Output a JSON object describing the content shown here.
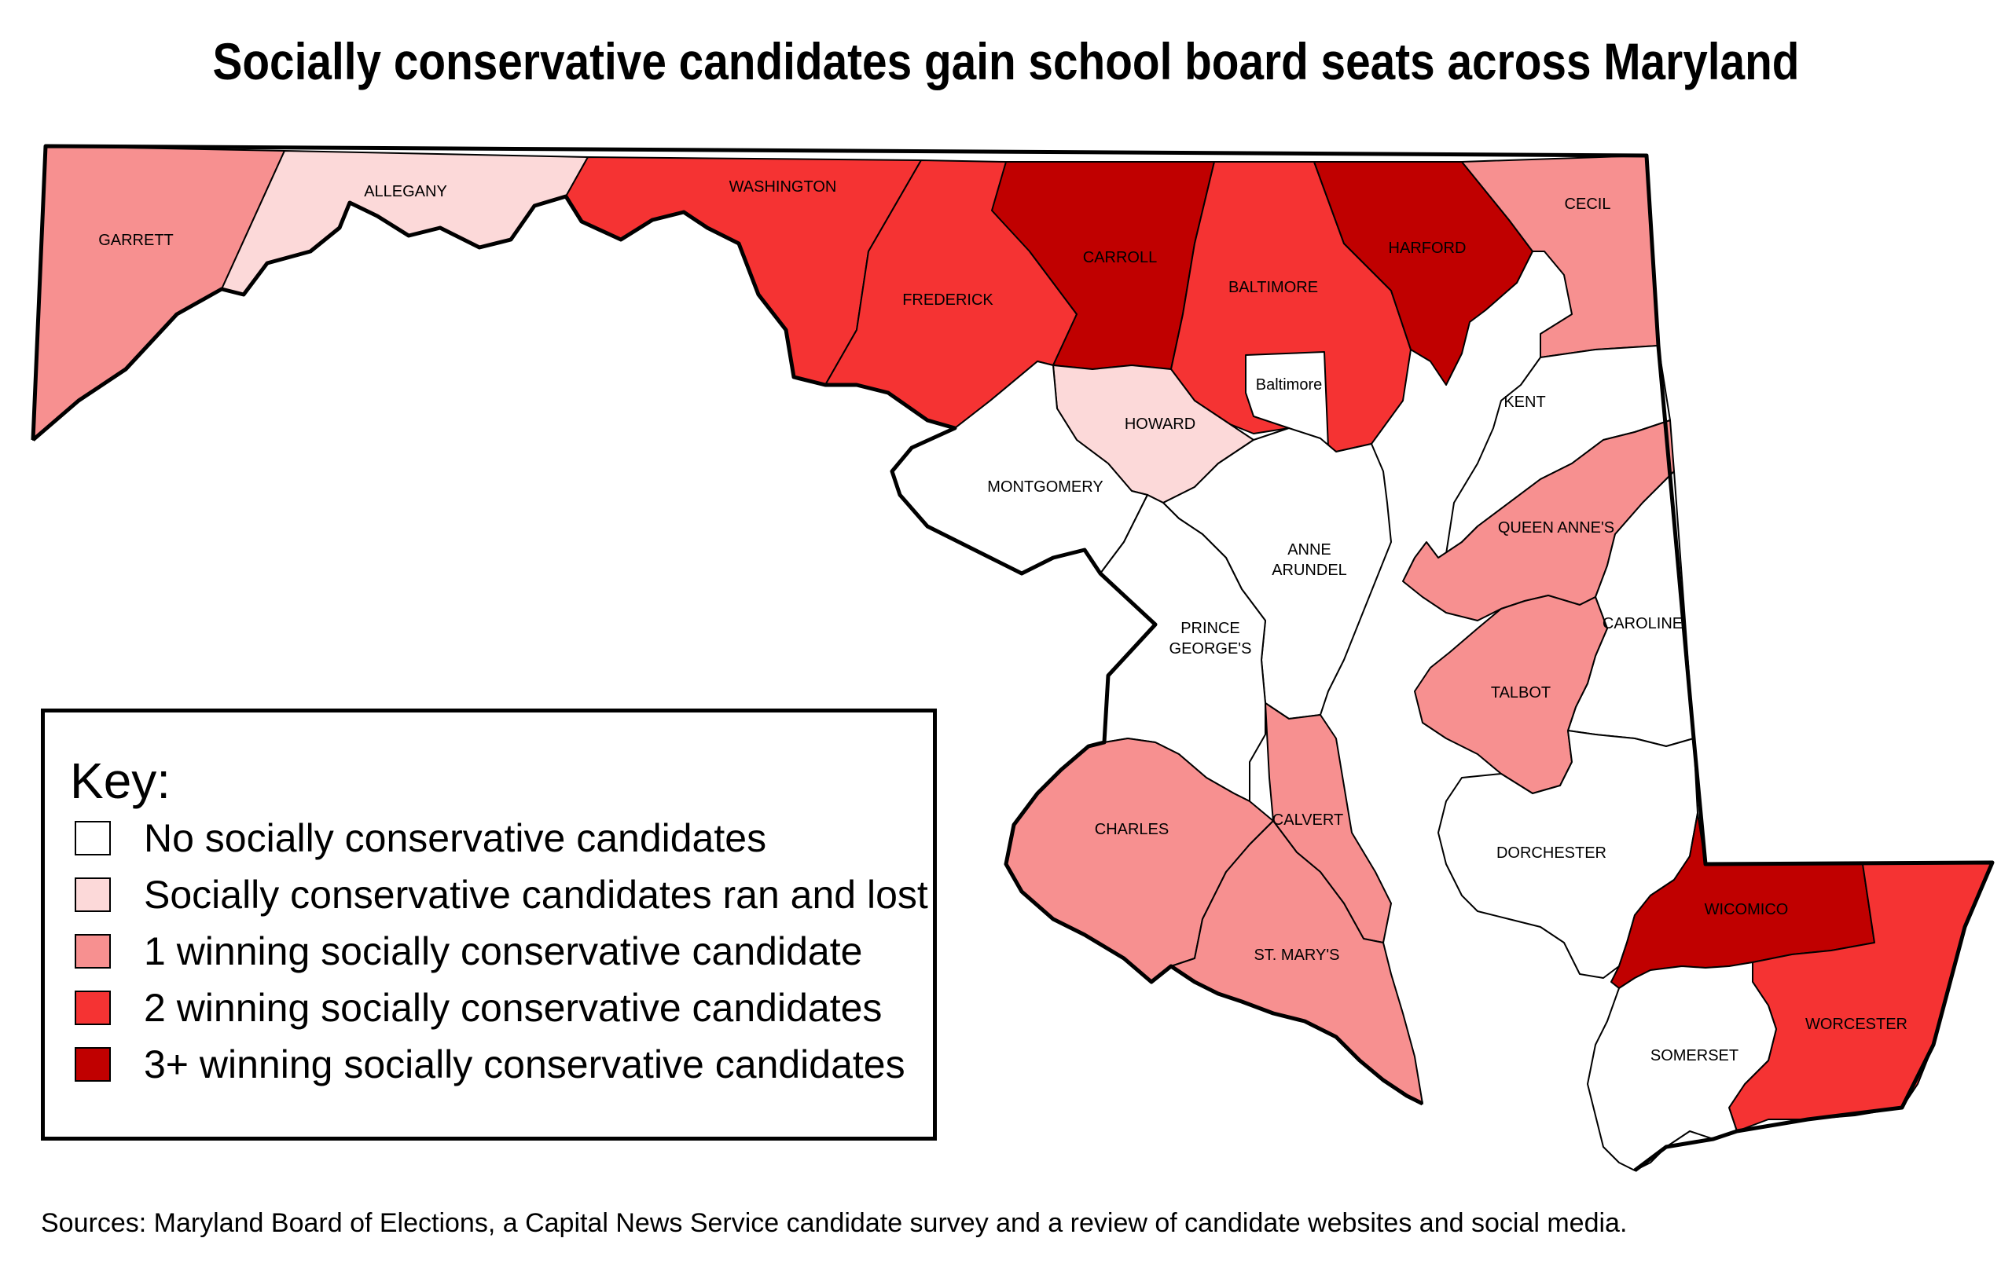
{
  "title": "Socially conservative candidates gain school board seats across Maryland",
  "colors": {
    "none": "#ffffff",
    "ran_lost": "#fcd9d9",
    "one": "#f79090",
    "two": "#f53333",
    "three_plus": "#c00000"
  },
  "counties": {
    "garrett": {
      "label": "GARRETT",
      "category": "one"
    },
    "allegany": {
      "label": "ALLEGANY",
      "category": "ran_lost"
    },
    "washington": {
      "label": "WASHINGTON",
      "category": "two"
    },
    "frederick": {
      "label": "FREDERICK",
      "category": "two"
    },
    "carroll": {
      "label": "CARROLL",
      "category": "three_plus"
    },
    "baltimore_county": {
      "label": "BALTIMORE",
      "category": "two"
    },
    "harford": {
      "label": "HARFORD",
      "category": "three_plus"
    },
    "cecil": {
      "label": "CECIL",
      "category": "one"
    },
    "baltimore_city": {
      "label": "Baltimore",
      "category": "none"
    },
    "howard": {
      "label": "HOWARD",
      "category": "ran_lost"
    },
    "montgomery": {
      "label": "MONTGOMERY",
      "category": "none"
    },
    "anne_arundel": {
      "label_line1": "ANNE",
      "label_line2": "ARUNDEL",
      "category": "none"
    },
    "prince_georges": {
      "label_line1": "PRINCE",
      "label_line2": "GEORGE'S",
      "category": "none"
    },
    "kent": {
      "label": "KENT",
      "category": "none"
    },
    "queen_annes": {
      "label": "QUEEN ANNE'S",
      "category": "one"
    },
    "caroline": {
      "label": "CAROLINE",
      "category": "none"
    },
    "talbot": {
      "label": "TALBOT",
      "category": "one"
    },
    "charles": {
      "label": "CHARLES",
      "category": "one"
    },
    "calvert": {
      "label": "CALVERT",
      "category": "one"
    },
    "st_marys": {
      "label": "ST. MARY'S",
      "category": "one"
    },
    "dorchester": {
      "label": "DORCHESTER",
      "category": "none"
    },
    "wicomico": {
      "label": "WICOMICO",
      "category": "three_plus"
    },
    "worcester": {
      "label": "WORCESTER",
      "category": "two"
    },
    "somerset": {
      "label": "SOMERSET",
      "category": "none"
    }
  },
  "legend": {
    "title": "Key:",
    "items": [
      {
        "label": "No socially conservative candidates",
        "category": "none"
      },
      {
        "label": "Socially conservative candidates ran and lost",
        "category": "ran_lost"
      },
      {
        "label": "1 winning socially conservative candidate",
        "category": "one"
      },
      {
        "label": "2 winning socially conservative candidates",
        "category": "two"
      },
      {
        "label": "3+ winning socially conservative candidates",
        "category": "three_plus"
      }
    ]
  },
  "source": "Sources: Maryland Board of Elections, a Capital News Service candidate survey and a review of candidate websites and social media."
}
